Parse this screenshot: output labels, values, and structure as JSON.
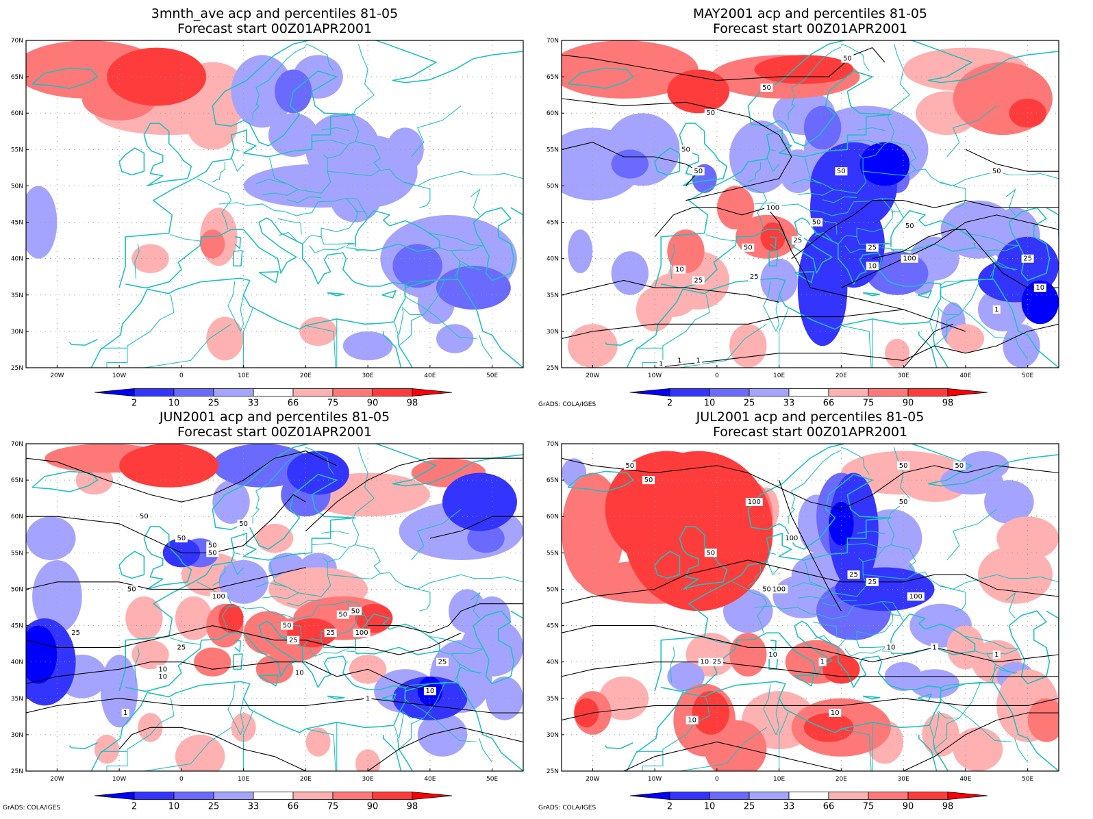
{
  "colorbar": {
    "labels": [
      "2",
      "10",
      "25",
      "33",
      "66",
      "75",
      "90",
      "98"
    ],
    "colors": [
      "#0000ff",
      "#3434ff",
      "#6a6aff",
      "#a4a4ff",
      "#ffffff",
      "#ffb0b0",
      "#ff7878",
      "#ff3c3c",
      "#ff0000"
    ]
  },
  "credit": "GrADS: COLA/IGES",
  "axes": {
    "lat_labels": [
      "70N",
      "65N",
      "60N",
      "55N",
      "50N",
      "45N",
      "40N",
      "35N",
      "30N",
      "25N"
    ],
    "lon_labels": [
      "20W",
      "10W",
      "0",
      "10E",
      "20E",
      "30E",
      "40E",
      "50E"
    ]
  },
  "coastline_color": "#20c0c0",
  "panels": [
    {
      "title": "3mnth_ave acp and percentiles 81-05",
      "subtitle": "Forecast start 00Z01APR2001",
      "show_credit": false,
      "contour_labels": []
    },
    {
      "title": "MAY2001 acp and percentiles 81-05",
      "subtitle": "Forecast start 00Z01APR2001",
      "show_credit": true,
      "contour_labels": [
        "50",
        "50",
        "50",
        "50",
        "50",
        "50",
        "100",
        "50",
        "25",
        "50",
        "25",
        "10",
        "25",
        "100",
        "50",
        "25",
        "10",
        "25",
        "10",
        "1",
        "1",
        "1",
        "1",
        "50"
      ]
    },
    {
      "title": "JUN2001 acp and percentiles 81-05",
      "subtitle": "Forecast start 00Z01APR2001",
      "show_credit": true,
      "contour_labels": [
        "50",
        "50",
        "50",
        "50",
        "25",
        "50",
        "50",
        "100",
        "50",
        "25",
        "25",
        "50",
        "25",
        "10",
        "100",
        "50",
        "25",
        "10",
        "10",
        "10",
        "1",
        "1"
      ]
    },
    {
      "title": "JUL2001 acp and percentiles 81-05",
      "subtitle": "Forecast start 00Z01APR2001",
      "show_credit": true,
      "contour_labels": [
        "50",
        "50",
        "50",
        "50",
        "100",
        "100",
        "50",
        "25",
        "50",
        "100",
        "50",
        "50",
        "10",
        "50",
        "100",
        "25",
        "10",
        "25",
        "10",
        "1",
        "10",
        "10",
        "1",
        "1"
      ]
    }
  ]
}
